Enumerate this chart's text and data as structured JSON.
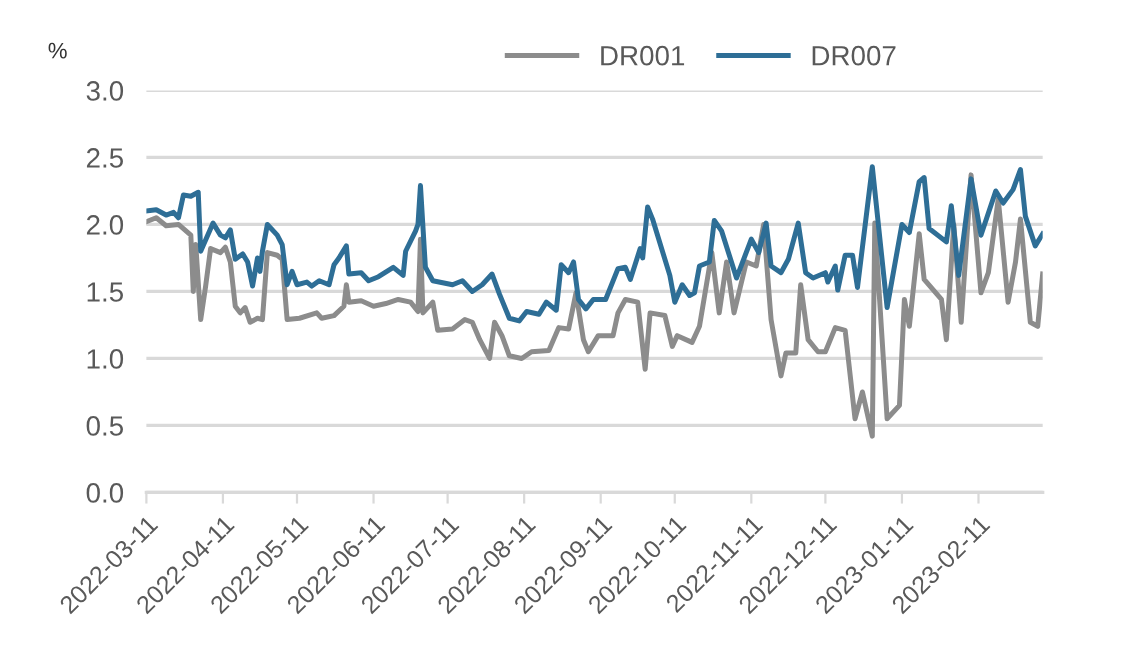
{
  "chart_data": {
    "type": "line",
    "ylabel": "%",
    "ylim": [
      0,
      3
    ],
    "yticks": [
      {
        "value": 0,
        "label": "0.0"
      },
      {
        "value": 0.5,
        "label": "0.5"
      },
      {
        "value": 1,
        "label": "1.0"
      },
      {
        "value": 1.5,
        "label": "1.5"
      },
      {
        "value": 2,
        "label": "2.0"
      },
      {
        "value": 2.5,
        "label": "2.5"
      },
      {
        "value": 3,
        "label": "3.0"
      }
    ],
    "xlim": [
      "2022-03-11",
      "2023-03-09"
    ],
    "xticks": [
      {
        "value": "2022-03-11",
        "label": "2022-03-11"
      },
      {
        "value": "2022-04-11",
        "label": "2022-04-11"
      },
      {
        "value": "2022-05-11",
        "label": "2022-05-11"
      },
      {
        "value": "2022-06-11",
        "label": "2022-06-11"
      },
      {
        "value": "2022-07-11",
        "label": "2022-07-11"
      },
      {
        "value": "2022-08-11",
        "label": "2022-08-11"
      },
      {
        "value": "2022-09-11",
        "label": "2022-09-11"
      },
      {
        "value": "2022-10-11",
        "label": "2022-10-11"
      },
      {
        "value": "2022-11-11",
        "label": "2022-11-11"
      },
      {
        "value": "2022-12-11",
        "label": "2022-12-11"
      },
      {
        "value": "2023-01-11",
        "label": "2023-01-11"
      },
      {
        "value": "2023-02-11",
        "label": "2023-02-11"
      }
    ],
    "grid": "y",
    "legend": "top",
    "marker": "none",
    "line_style": "solid",
    "series": [
      {
        "name": "DR001",
        "color": "#8c8c8c",
        "x": [
          "2022-03-11",
          "2022-03-15",
          "2022-03-19",
          "2022-03-24",
          "2022-03-29",
          "2022-03-30",
          "2022-03-31",
          "2022-04-02",
          "2022-04-04",
          "2022-04-06",
          "2022-04-10",
          "2022-04-12",
          "2022-04-14",
          "2022-04-16",
          "2022-04-18",
          "2022-04-20",
          "2022-04-22",
          "2022-04-25",
          "2022-04-27",
          "2022-04-29",
          "2022-05-03",
          "2022-05-05",
          "2022-05-07",
          "2022-05-12",
          "2022-05-19",
          "2022-05-21",
          "2022-05-26",
          "2022-05-30",
          "2022-05-31",
          "2022-06-01",
          "2022-06-06",
          "2022-06-11",
          "2022-06-16",
          "2022-06-21",
          "2022-06-26",
          "2022-06-29",
          "2022-06-30",
          "2022-07-01",
          "2022-07-05",
          "2022-07-07",
          "2022-07-13",
          "2022-07-18",
          "2022-07-21",
          "2022-07-24",
          "2022-07-28",
          "2022-07-30",
          "2022-08-02",
          "2022-08-05",
          "2022-08-10",
          "2022-08-14",
          "2022-08-21",
          "2022-08-25",
          "2022-08-29",
          "2022-09-01",
          "2022-09-04",
          "2022-09-06",
          "2022-09-10",
          "2022-09-16",
          "2022-09-18",
          "2022-09-21",
          "2022-09-26",
          "2022-09-29",
          "2022-10-01",
          "2022-10-07",
          "2022-10-10",
          "2022-10-12",
          "2022-10-18",
          "2022-10-21",
          "2022-10-26",
          "2022-10-29",
          "2022-11-01",
          "2022-11-04",
          "2022-11-09",
          "2022-11-13",
          "2022-11-16",
          "2022-11-19",
          "2022-11-23",
          "2022-11-25",
          "2022-11-29",
          "2022-12-01",
          "2022-12-04",
          "2022-12-08",
          "2022-12-11",
          "2022-12-15",
          "2022-12-19",
          "2022-12-23",
          "2022-12-26",
          "2022-12-30",
          "2022-12-31",
          "2023-01-05",
          "2023-01-10",
          "2023-01-12",
          "2023-01-14",
          "2023-01-18",
          "2023-01-20",
          "2023-01-27",
          "2023-01-29",
          "2023-02-01",
          "2023-02-04",
          "2023-02-08",
          "2023-02-12",
          "2023-02-15",
          "2023-02-19",
          "2023-02-23",
          "2023-02-26",
          "2023-02-28",
          "2023-03-04",
          "2023-03-07",
          "2023-03-09"
        ],
        "values": [
          2.02,
          2.05,
          1.99,
          2.0,
          1.92,
          1.5,
          1.85,
          1.29,
          1.54,
          1.82,
          1.79,
          1.83,
          1.72,
          1.39,
          1.34,
          1.38,
          1.27,
          1.3,
          1.29,
          1.79,
          1.77,
          1.74,
          1.29,
          1.3,
          1.34,
          1.3,
          1.32,
          1.39,
          1.55,
          1.42,
          1.43,
          1.39,
          1.41,
          1.44,
          1.42,
          1.35,
          1.89,
          1.34,
          1.42,
          1.21,
          1.22,
          1.29,
          1.27,
          1.14,
          1.0,
          1.27,
          1.17,
          1.02,
          1.0,
          1.05,
          1.06,
          1.23,
          1.22,
          1.49,
          1.14,
          1.05,
          1.17,
          1.17,
          1.34,
          1.44,
          1.42,
          0.92,
          1.34,
          1.32,
          1.09,
          1.17,
          1.12,
          1.24,
          1.79,
          1.34,
          1.72,
          1.34,
          1.72,
          1.69,
          2.0,
          1.29,
          0.87,
          1.04,
          1.04,
          1.55,
          1.14,
          1.05,
          1.05,
          1.23,
          1.21,
          0.55,
          0.75,
          0.42,
          2.01,
          0.55,
          0.65,
          1.44,
          1.24,
          1.93,
          1.59,
          1.44,
          1.14,
          2.0,
          1.27,
          2.37,
          1.49,
          1.64,
          2.19,
          1.42,
          1.72,
          2.04,
          1.27,
          1.24,
          1.63
        ]
      },
      {
        "name": "DR007",
        "color": "#2e6e96",
        "x": [
          "2022-03-11",
          "2022-03-15",
          "2022-03-19",
          "2022-03-22",
          "2022-03-24",
          "2022-03-26",
          "2022-03-29",
          "2022-04-01",
          "2022-04-02",
          "2022-04-07",
          "2022-04-10",
          "2022-04-12",
          "2022-04-14",
          "2022-04-16",
          "2022-04-19",
          "2022-04-21",
          "2022-04-23",
          "2022-04-25",
          "2022-04-26",
          "2022-04-27",
          "2022-04-29",
          "2022-05-03",
          "2022-05-05",
          "2022-05-07",
          "2022-05-09",
          "2022-05-11",
          "2022-05-15",
          "2022-05-17",
          "2022-05-20",
          "2022-05-24",
          "2022-05-26",
          "2022-05-28",
          "2022-05-31",
          "2022-06-01",
          "2022-06-06",
          "2022-06-09",
          "2022-06-13",
          "2022-06-19",
          "2022-06-23",
          "2022-06-24",
          "2022-06-28",
          "2022-06-29",
          "2022-06-30",
          "2022-07-02",
          "2022-07-05",
          "2022-07-13",
          "2022-07-17",
          "2022-07-21",
          "2022-07-25",
          "2022-07-29",
          "2022-08-01",
          "2022-08-05",
          "2022-08-09",
          "2022-08-12",
          "2022-08-17",
          "2022-08-20",
          "2022-08-24",
          "2022-08-26",
          "2022-08-29",
          "2022-08-31",
          "2022-09-02",
          "2022-09-05",
          "2022-09-08",
          "2022-09-13",
          "2022-09-18",
          "2022-09-21",
          "2022-09-23",
          "2022-09-27",
          "2022-09-28",
          "2022-09-30",
          "2022-10-02",
          "2022-10-09",
          "2022-10-11",
          "2022-10-14",
          "2022-10-17",
          "2022-10-19",
          "2022-10-21",
          "2022-10-25",
          "2022-10-27",
          "2022-10-30",
          "2022-11-05",
          "2022-11-11",
          "2022-11-14",
          "2022-11-17",
          "2022-11-19",
          "2022-11-23",
          "2022-11-26",
          "2022-11-30",
          "2022-12-03",
          "2022-12-06",
          "2022-12-11",
          "2022-12-12",
          "2022-12-15",
          "2022-12-16",
          "2022-12-19",
          "2022-12-22",
          "2022-12-24",
          "2022-12-30",
          "2023-01-05",
          "2023-01-11",
          "2023-01-14",
          "2023-01-18",
          "2023-01-20",
          "2023-01-22",
          "2023-01-29",
          "2023-01-31",
          "2023-02-03",
          "2023-02-08",
          "2023-02-12",
          "2023-02-18",
          "2023-02-21",
          "2023-02-25",
          "2023-02-28",
          "2023-03-02",
          "2023-03-06",
          "2023-03-09"
        ],
        "values": [
          2.1,
          2.11,
          2.07,
          2.09,
          2.05,
          2.22,
          2.21,
          2.24,
          1.8,
          2.01,
          1.92,
          1.9,
          1.96,
          1.74,
          1.78,
          1.72,
          1.54,
          1.75,
          1.65,
          1.8,
          2.0,
          1.92,
          1.85,
          1.55,
          1.65,
          1.55,
          1.57,
          1.54,
          1.58,
          1.55,
          1.7,
          1.75,
          1.84,
          1.63,
          1.64,
          1.58,
          1.61,
          1.68,
          1.62,
          1.8,
          1.95,
          2.0,
          2.29,
          1.68,
          1.58,
          1.55,
          1.58,
          1.5,
          1.55,
          1.63,
          1.48,
          1.3,
          1.28,
          1.35,
          1.33,
          1.42,
          1.36,
          1.7,
          1.64,
          1.72,
          1.44,
          1.37,
          1.44,
          1.44,
          1.67,
          1.68,
          1.59,
          1.82,
          1.75,
          2.13,
          2.04,
          1.62,
          1.42,
          1.55,
          1.47,
          1.49,
          1.69,
          1.72,
          2.03,
          1.95,
          1.6,
          1.89,
          1.79,
          2.01,
          1.69,
          1.64,
          1.74,
          2.01,
          1.64,
          1.6,
          1.64,
          1.57,
          1.69,
          1.51,
          1.77,
          1.77,
          1.53,
          2.43,
          1.38,
          2.0,
          1.94,
          2.32,
          2.35,
          1.97,
          1.87,
          2.14,
          1.62,
          2.34,
          1.92,
          2.25,
          2.16,
          2.26,
          2.41,
          2.06,
          1.84,
          1.93
        ]
      }
    ]
  }
}
